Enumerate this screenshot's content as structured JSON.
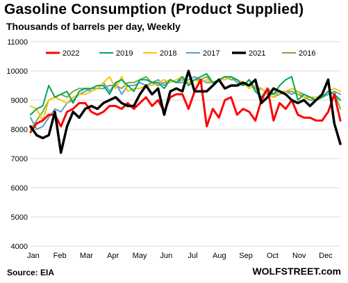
{
  "header": {
    "title": "Gasoline  Consumption  (Product Supplied)",
    "subtitle": "Thousands of barrels per day, Weekly"
  },
  "footer": {
    "source": "Source: EIA",
    "brand": "WOLFSTREET.com"
  },
  "chart_data": {
    "type": "line",
    "title": "Gasoline  Consumption  (Product Supplied)",
    "subtitle": "Thousands of barrels per day, Weekly",
    "xlabel": "",
    "ylabel": "",
    "ylim": [
      4000,
      11000
    ],
    "y_ticks": [
      4000,
      5000,
      6000,
      7000,
      8000,
      9000,
      10000,
      11000
    ],
    "x_ticks": [
      "Jan",
      "Feb",
      "Mar",
      "Apr",
      "May",
      "Jun",
      "Jul",
      "Aug",
      "Sep",
      "Oct",
      "Nov",
      "Dec"
    ],
    "x_range_weeks": [
      1,
      52
    ],
    "grid": true,
    "legend_position": "top",
    "series": [
      {
        "name": "2022",
        "color": "#ff0000",
        "stroke_width": 3,
        "values": [
          7900,
          8200,
          8300,
          8500,
          8500,
          8100,
          8600,
          8700,
          8900,
          8900,
          8600,
          8500,
          8600,
          8800,
          8800,
          8700,
          8900,
          8700,
          8900,
          9100,
          8800,
          9000,
          8600,
          9100,
          9200,
          9200,
          8700,
          9300,
          9700,
          8100,
          8700,
          8400,
          9000,
          9100,
          8500,
          8700,
          8600,
          8300,
          9000,
          9400,
          8300,
          8900,
          8700,
          9000,
          8500,
          8400,
          8400,
          8300,
          8300,
          8600,
          9200,
          8300
        ]
      },
      {
        "name": "2019",
        "color": "#00a651",
        "stroke_width": 2,
        "values": [
          8500,
          8700,
          8800,
          9500,
          9100,
          9200,
          9300,
          8900,
          9300,
          9400,
          9400,
          9500,
          9500,
          9200,
          9600,
          9700,
          9500,
          9300,
          9700,
          9700,
          9600,
          9600,
          9400,
          9700,
          9600,
          9800,
          9500,
          9700,
          9800,
          9900,
          9600,
          9700,
          9800,
          9800,
          9700,
          9500,
          9700,
          9300,
          9100,
          9400,
          9200,
          9500,
          9700,
          9800,
          9000,
          9200,
          9100,
          9000,
          9100,
          9300,
          9200,
          9000
        ]
      },
      {
        "name": "2018",
        "color": "#ffc000",
        "stroke_width": 2,
        "values": [
          8800,
          8700,
          8300,
          9000,
          9100,
          9000,
          8900,
          9100,
          9200,
          9200,
          9300,
          9400,
          9600,
          9800,
          9400,
          9800,
          9300,
          9400,
          9400,
          9500,
          9500,
          9600,
          9700,
          9600,
          9700,
          9800,
          9600,
          9700,
          9600,
          9700,
          9600,
          9700,
          9700,
          9800,
          9700,
          9600,
          9400,
          9500,
          9400,
          9200,
          9100,
          9300,
          9300,
          9400,
          9300,
          9100,
          9100,
          9100,
          9100,
          9300,
          9400,
          9300
        ]
      },
      {
        "name": "2017",
        "color": "#5b9bd5",
        "stroke_width": 2,
        "values": [
          8400,
          8000,
          8100,
          8400,
          8700,
          8600,
          8900,
          9000,
          9200,
          9300,
          9400,
          9400,
          9600,
          9300,
          9600,
          9200,
          9500,
          9500,
          9600,
          9500,
          9600,
          9700,
          9500,
          9700,
          9600,
          9600,
          9700,
          9800,
          9700,
          9600,
          9600,
          9700,
          9700,
          9800,
          9600,
          9500,
          9700,
          9400,
          9400,
          9200,
          9200,
          9300,
          9300,
          9200,
          9300,
          9200,
          9100,
          9000,
          9100,
          9200,
          9300,
          9200
        ]
      },
      {
        "name": "2021",
        "color": "#000000",
        "stroke_width": 3.5,
        "values": [
          8100,
          7800,
          7700,
          7800,
          8600,
          7200,
          8100,
          8600,
          8400,
          8700,
          8800,
          8700,
          8900,
          9000,
          9100,
          8900,
          8800,
          8800,
          9200,
          9500,
          9200,
          9400,
          8500,
          9300,
          9400,
          9300,
          10000,
          9300,
          9300,
          9300,
          9500,
          9700,
          9400,
          9500,
          9500,
          9600,
          9500,
          9700,
          8900,
          9100,
          9400,
          9300,
          9200,
          9000,
          8900,
          9000,
          8800,
          9000,
          9200,
          9700,
          8200,
          7500
        ]
      },
      {
        "name": "2016",
        "color": "#70ad47",
        "stroke_width": 2,
        "values": [
          8000,
          8300,
          8600,
          9000,
          9100,
          9200,
          9100,
          9300,
          9400,
          9400,
          9300,
          9400,
          9400,
          9500,
          9500,
          9400,
          9600,
          9600,
          9700,
          9800,
          9600,
          9500,
          9600,
          9700,
          9600,
          9700,
          9600,
          9700,
          9700,
          9800,
          9600,
          9700,
          9800,
          9700,
          9700,
          9500,
          9700,
          9300,
          9400,
          9200,
          9100,
          9200,
          9300,
          9300,
          9200,
          9100,
          9000,
          9000,
          9100,
          9200,
          9300,
          8700
        ]
      }
    ]
  }
}
